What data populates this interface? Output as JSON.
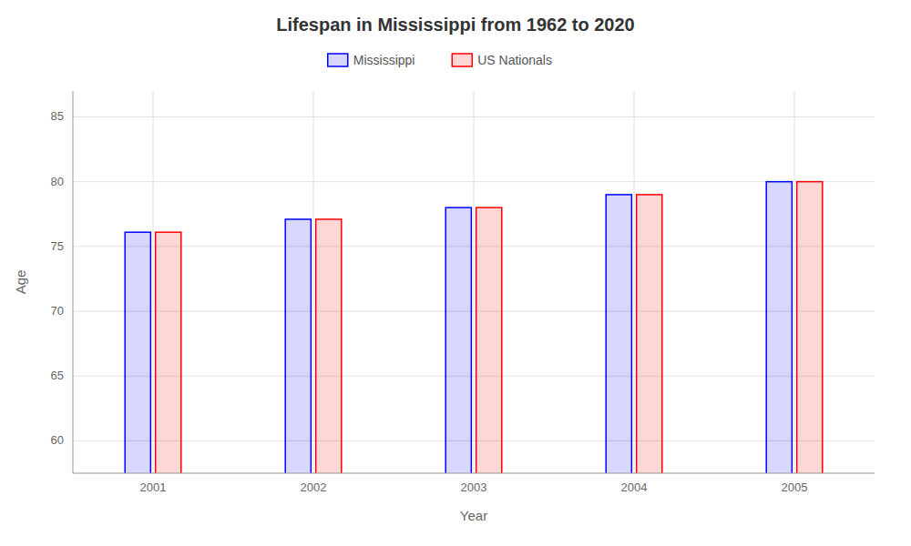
{
  "chart_data": {
    "type": "bar",
    "title": "Lifespan in Mississippi from 1962 to 2020",
    "xlabel": "Year",
    "ylabel": "Age",
    "categories": [
      "2001",
      "2002",
      "2003",
      "2004",
      "2005"
    ],
    "series": [
      {
        "name": "Mississippi",
        "color": "#0000ff",
        "values": [
          76.1,
          77.1,
          78.0,
          79.0,
          80.0
        ]
      },
      {
        "name": "US Nationals",
        "color": "#ff0000",
        "values": [
          76.1,
          77.1,
          78.0,
          79.0,
          80.0
        ]
      }
    ],
    "ylim": [
      57.5,
      87
    ],
    "yticks": [
      60,
      65,
      70,
      75,
      80,
      85
    ],
    "grid": true,
    "legend": "top"
  }
}
